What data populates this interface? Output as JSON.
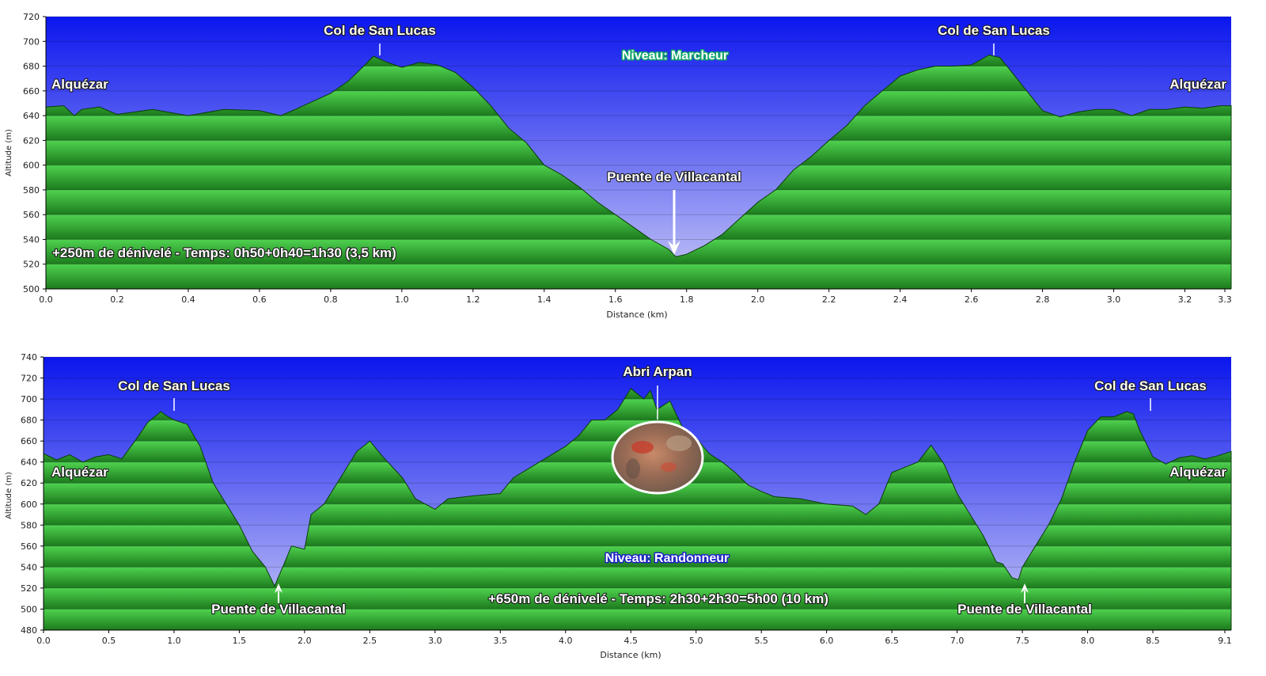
{
  "colors": {
    "sky_top": "#0b16ee",
    "sky_bottom": "#c9c9f6",
    "terrain_light": "#4fd24f",
    "terrain_dark": "#1c7a1c",
    "terrain_line": "#0a3d0a"
  },
  "chart_data": [
    {
      "type": "area",
      "xlabel": "Distance    (km)",
      "ylabel": "Altitude (m)",
      "xlim": [
        0,
        3.33
      ],
      "ylim": [
        500,
        720
      ],
      "xticks": [
        0.0,
        0.2,
        0.4,
        0.6,
        0.8,
        1.0,
        1.2,
        1.4,
        1.6,
        1.8,
        2.0,
        2.2,
        2.4,
        2.6,
        2.8,
        3.0,
        3.2,
        3.3
      ],
      "xtick_labels": [
        "0.0",
        "0.2",
        "0.4",
        "0.6",
        "0.8",
        "1.0",
        "1.2",
        "1.4",
        "1.6",
        "1.8",
        "2.0",
        "2.2",
        "2.4",
        "2.6",
        "2.8",
        "3.0",
        "3.2",
        "3.3"
      ],
      "yticks": [
        500,
        520,
        540,
        560,
        580,
        600,
        620,
        640,
        660,
        680,
        700,
        720
      ],
      "grid": true,
      "x": [
        0,
        0.05,
        0.08,
        0.1,
        0.15,
        0.2,
        0.3,
        0.4,
        0.5,
        0.6,
        0.66,
        0.7,
        0.8,
        0.85,
        0.9,
        0.92,
        0.96,
        1.0,
        1.05,
        1.1,
        1.15,
        1.2,
        1.25,
        1.3,
        1.35,
        1.4,
        1.45,
        1.5,
        1.55,
        1.6,
        1.65,
        1.7,
        1.75,
        1.77,
        1.8,
        1.85,
        1.9,
        1.95,
        2.0,
        2.05,
        2.1,
        2.15,
        2.2,
        2.25,
        2.3,
        2.35,
        2.4,
        2.45,
        2.5,
        2.55,
        2.6,
        2.65,
        2.68,
        2.7,
        2.75,
        2.8,
        2.85,
        2.9,
        2.95,
        3.0,
        3.05,
        3.1,
        3.15,
        3.2,
        3.25,
        3.3,
        3.33
      ],
      "y": [
        647,
        648,
        640,
        645,
        647,
        641,
        645,
        640,
        645,
        644,
        640,
        645,
        658,
        668,
        682,
        688,
        683,
        679,
        683,
        681,
        675,
        663,
        648,
        630,
        618,
        600,
        592,
        582,
        570,
        560,
        550,
        540,
        532,
        526,
        528,
        535,
        544,
        557,
        570,
        580,
        596,
        607,
        620,
        632,
        648,
        660,
        672,
        677,
        680,
        680,
        681,
        689,
        687,
        680,
        662,
        644,
        639,
        643,
        645,
        645,
        640,
        645,
        645,
        647,
        646,
        648,
        648
      ],
      "annotations": [
        {
          "text": "Col de San Lucas",
          "x": 0.92,
          "y": 688,
          "marker": "tick"
        },
        {
          "text": "Col de San Lucas",
          "x": 2.65,
          "y": 689,
          "marker": "tick"
        },
        {
          "text": "Puente de Villacantal",
          "x": 1.77,
          "y": 526,
          "marker": "arrow"
        },
        {
          "text": "Alquézar",
          "x": 0.0,
          "y": 647,
          "marker": "none"
        },
        {
          "text": "Alquézar",
          "x": 3.33,
          "y": 648,
          "marker": "none"
        },
        {
          "text": "Niveau: Marcheur",
          "x": 1.77,
          "y": 697,
          "marker": "level"
        },
        {
          "text": "+250m de dénivelé - Temps: 0h50+0h40=1h30 (3,5 km)",
          "x": 0.0,
          "y": 528,
          "marker": "none"
        }
      ]
    },
    {
      "type": "area",
      "xlabel": "Distance    (km)",
      "ylabel": "Altitude (m)",
      "xlim": [
        0,
        9.1
      ],
      "ylim": [
        480,
        740
      ],
      "xticks": [
        0.0,
        0.5,
        1.0,
        1.5,
        2.0,
        2.5,
        3.0,
        3.5,
        4.0,
        4.5,
        5.0,
        5.5,
        6.0,
        6.5,
        7.0,
        7.5,
        8.0,
        8.5,
        9.1
      ],
      "xtick_labels": [
        "0.0",
        "0.5",
        "1.0",
        "1.5",
        "2.0",
        "2.5",
        "3.0",
        "3.5",
        "4.0",
        "4.5",
        "5.0",
        "5.5",
        "6.0",
        "6.5",
        "7.0",
        "7.5",
        "8.0",
        "8.5",
        "9.1"
      ],
      "yticks": [
        480,
        500,
        520,
        540,
        560,
        580,
        600,
        620,
        640,
        660,
        680,
        700,
        720,
        740
      ],
      "grid": true,
      "x": [
        0,
        0.1,
        0.2,
        0.3,
        0.4,
        0.5,
        0.6,
        0.7,
        0.8,
        0.9,
        0.93,
        1.0,
        1.1,
        1.2,
        1.3,
        1.4,
        1.5,
        1.6,
        1.7,
        1.77,
        1.85,
        1.9,
        2.0,
        2.05,
        2.15,
        2.3,
        2.4,
        2.5,
        2.6,
        2.75,
        2.85,
        3.0,
        3.1,
        3.3,
        3.5,
        3.6,
        3.8,
        4.0,
        4.1,
        4.2,
        4.3,
        4.4,
        4.5,
        4.6,
        4.65,
        4.7,
        4.8,
        4.9,
        5.0,
        5.1,
        5.2,
        5.3,
        5.4,
        5.5,
        5.6,
        5.8,
        6.0,
        6.2,
        6.3,
        6.4,
        6.5,
        6.6,
        6.7,
        6.8,
        6.9,
        7.0,
        7.1,
        7.2,
        7.3,
        7.35,
        7.42,
        7.47,
        7.5,
        7.6,
        7.7,
        7.8,
        7.9,
        8.0,
        8.1,
        8.2,
        8.3,
        8.35,
        8.4,
        8.5,
        8.6,
        8.7,
        8.8,
        8.9,
        9.0,
        9.1
      ],
      "y": [
        648,
        642,
        647,
        640,
        645,
        647,
        643,
        660,
        678,
        688,
        685,
        680,
        676,
        655,
        620,
        600,
        580,
        555,
        540,
        522,
        545,
        560,
        557,
        590,
        600,
        630,
        650,
        660,
        645,
        625,
        605,
        595,
        605,
        608,
        610,
        625,
        640,
        655,
        665,
        680,
        680,
        690,
        710,
        700,
        708,
        690,
        698,
        672,
        663,
        648,
        640,
        630,
        618,
        612,
        607,
        605,
        600,
        598,
        590,
        600,
        630,
        635,
        640,
        656,
        638,
        610,
        590,
        570,
        545,
        543,
        530,
        528,
        540,
        560,
        580,
        605,
        640,
        670,
        683,
        683,
        688,
        686,
        670,
        645,
        638,
        644,
        646,
        643,
        646,
        650
      ],
      "annotations": [
        {
          "text": "Col de San Lucas",
          "x": 0.93,
          "y": 688,
          "marker": "tick"
        },
        {
          "text": "Col de San Lucas",
          "x": 8.4,
          "y": 688,
          "marker": "tick"
        },
        {
          "text": "Abri Arpan",
          "x": 4.65,
          "y": 710,
          "marker": "tick"
        },
        {
          "text": "Puente de Villacantal",
          "x": 1.77,
          "y": 522,
          "marker": "arrow-up"
        },
        {
          "text": "Puente de Villacantal",
          "x": 7.47,
          "y": 528,
          "marker": "arrow-up"
        },
        {
          "text": "Alquézar",
          "x": 0.0,
          "y": 628,
          "marker": "none"
        },
        {
          "text": "Alquézar",
          "x": 9.1,
          "y": 628,
          "marker": "none"
        },
        {
          "text": "Niveau: Randonneur",
          "x": 4.9,
          "y": 545,
          "marker": "level"
        },
        {
          "text": "+650m de dénivelé - Temps: 2h30+2h30=5h00 (10 km)",
          "x": 4.9,
          "y": 514,
          "marker": "none"
        }
      ]
    }
  ]
}
